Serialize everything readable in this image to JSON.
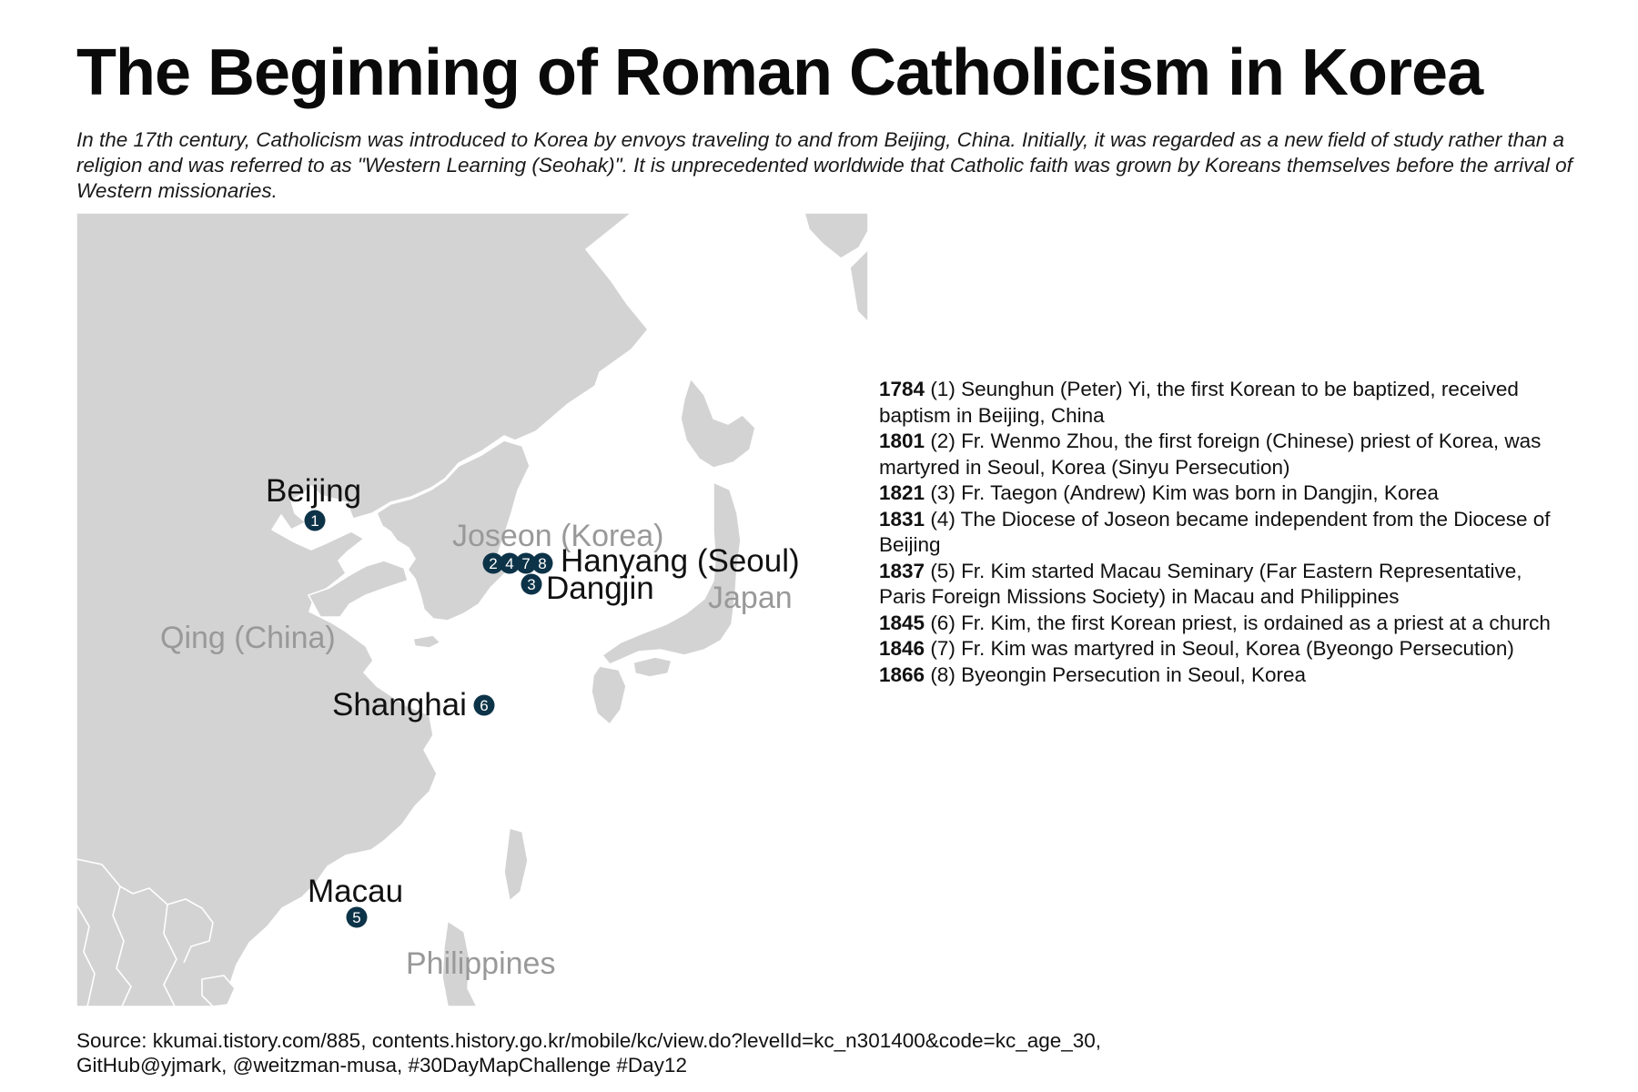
{
  "title": "The Beginning of Roman Catholicism in Korea",
  "subtitle": "In the 17th century, Catholicism was introduced to Korea by envoys traveling to and from Beijing, China. Initially, it was regarded as a new field of study rather than a religion and was referred to as \"Western Learning (Seohak)\". It is unprecedented worldwide that Catholic faith was grown by Koreans themselves before the arrival of Western missionaries.",
  "colors": {
    "land": "#d3d3d3",
    "border": "#ffffff",
    "marker": "#0c3348",
    "region_label": "#999999",
    "city_label": "#111111"
  },
  "map": {
    "regions": [
      "Joseon (Korea)",
      "Japan",
      "Qing (China)",
      "Philippines"
    ],
    "cities": [
      {
        "name": "Beijing",
        "markers": [
          "1"
        ]
      },
      {
        "name": "Hanyang (Seoul)",
        "markers": [
          "2",
          "4",
          "7",
          "8"
        ]
      },
      {
        "name": "Dangjin",
        "markers": [
          "3"
        ]
      },
      {
        "name": "Shanghai",
        "markers": [
          "6"
        ]
      },
      {
        "name": "Macau",
        "markers": [
          "5"
        ]
      }
    ]
  },
  "timeline": [
    {
      "year": "1784",
      "text": " (1) Seunghun (Peter) Yi, the first Korean to be baptized, received baptism in Beijing, China"
    },
    {
      "year": "1801",
      "text": " (2) Fr. Wenmo Zhou, the first foreign (Chinese) priest of Korea, was martyred in Seoul, Korea (Sinyu Persecution)"
    },
    {
      "year": "1821",
      "text": " (3) Fr. Taegon (Andrew) Kim was born in Dangjin, Korea"
    },
    {
      "year": "1831",
      "text": " (4) The Diocese of Joseon became independent from the Diocese of Beijing"
    },
    {
      "year": "1837",
      "text": " (5) Fr. Kim started Macau Seminary (Far Eastern Representative, Paris Foreign Missions Society) in Macau and Philippines"
    },
    {
      "year": "1845",
      "text": " (6) Fr. Kim, the first Korean priest, is ordained as a priest at a church"
    },
    {
      "year": "1846",
      "text": " (7) Fr. Kim was martyred in Seoul, Korea (Byeongo Persecution)"
    },
    {
      "year": "1866",
      "text": " (8) Byeongin Persecution in Seoul, Korea"
    }
  ],
  "source": {
    "line1": "Source: kkumai.tistory.com/885, contents.history.go.kr/mobile/kc/view.do?levelId=kc_n301400&code=kc_age_30,",
    "line2": "GitHub@yjmark, @weitzman-musa, #30DayMapChallenge #Day12"
  }
}
